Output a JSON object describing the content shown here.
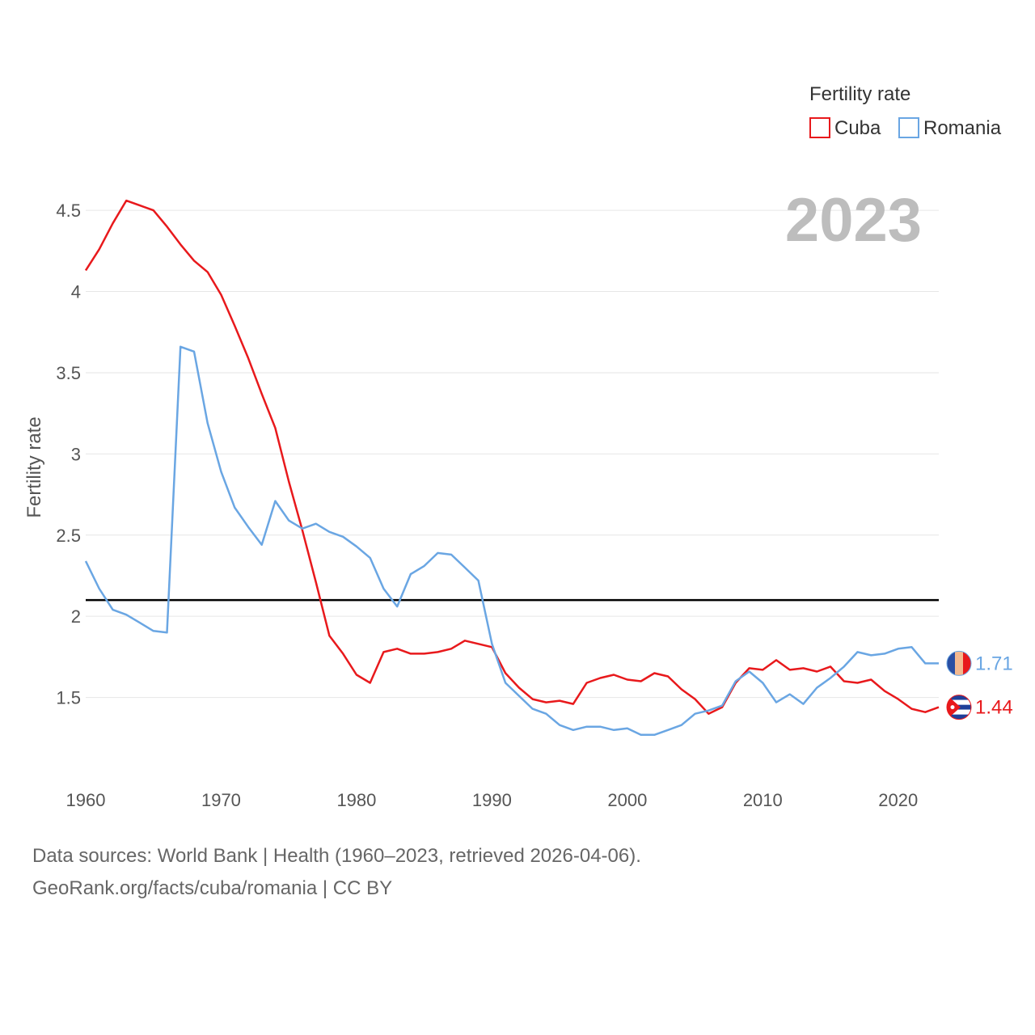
{
  "chart_data": {
    "type": "line",
    "title": "",
    "xlabel": "",
    "ylabel": "Fertility rate",
    "xlim": [
      1960,
      2023
    ],
    "ylim": [
      1.0,
      4.65
    ],
    "yticks": [
      1.5,
      2,
      2.5,
      3,
      3.5,
      4,
      4.5
    ],
    "ytick_labels": [
      "1.5",
      "2",
      "2.5",
      "3",
      "3.5",
      "4",
      "4.5"
    ],
    "xticks": [
      1960,
      1970,
      1980,
      1990,
      2000,
      2010,
      2020
    ],
    "xtick_labels": [
      "1960",
      "1970",
      "1980",
      "1990",
      "2000",
      "2010",
      "2020"
    ],
    "grid": true,
    "year_watermark": "2023",
    "reference_line": {
      "y": 2.1,
      "color": "#000000"
    },
    "legend": {
      "title": "Fertility rate",
      "position": "top-right"
    },
    "x": [
      1960,
      1961,
      1962,
      1963,
      1964,
      1965,
      1966,
      1967,
      1968,
      1969,
      1970,
      1971,
      1972,
      1973,
      1974,
      1975,
      1976,
      1977,
      1978,
      1979,
      1980,
      1981,
      1982,
      1983,
      1984,
      1985,
      1986,
      1987,
      1988,
      1989,
      1990,
      1991,
      1992,
      1993,
      1994,
      1995,
      1996,
      1997,
      1998,
      1999,
      2000,
      2001,
      2002,
      2003,
      2004,
      2005,
      2006,
      2007,
      2008,
      2009,
      2010,
      2011,
      2012,
      2013,
      2014,
      2015,
      2016,
      2017,
      2018,
      2019,
      2020,
      2021,
      2022,
      2023
    ],
    "series": [
      {
        "name": "Cuba",
        "color": "#e8191c",
        "end_label": "1.44",
        "values": [
          4.13,
          4.26,
          4.42,
          4.56,
          4.53,
          4.5,
          4.4,
          4.29,
          4.19,
          4.12,
          3.98,
          3.79,
          3.59,
          3.37,
          3.16,
          2.83,
          2.53,
          2.21,
          1.88,
          1.77,
          1.64,
          1.59,
          1.78,
          1.8,
          1.77,
          1.77,
          1.78,
          1.8,
          1.85,
          1.83,
          1.81,
          1.65,
          1.56,
          1.49,
          1.47,
          1.48,
          1.46,
          1.59,
          1.62,
          1.64,
          1.61,
          1.6,
          1.65,
          1.63,
          1.55,
          1.49,
          1.4,
          1.44,
          1.59,
          1.68,
          1.67,
          1.73,
          1.67,
          1.68,
          1.66,
          1.69,
          1.6,
          1.59,
          1.61,
          1.54,
          1.49,
          1.43,
          1.41,
          1.44
        ]
      },
      {
        "name": "Romania",
        "color": "#6aa6e3",
        "end_label": "1.71",
        "values": [
          2.34,
          2.17,
          2.04,
          2.01,
          1.96,
          1.91,
          1.9,
          3.66,
          3.63,
          3.19,
          2.89,
          2.67,
          2.55,
          2.44,
          2.71,
          2.59,
          2.54,
          2.57,
          2.52,
          2.49,
          2.43,
          2.36,
          2.17,
          2.06,
          2.26,
          2.31,
          2.39,
          2.38,
          2.3,
          2.22,
          1.83,
          1.59,
          1.51,
          1.43,
          1.4,
          1.33,
          1.3,
          1.32,
          1.32,
          1.3,
          1.31,
          1.27,
          1.27,
          1.3,
          1.33,
          1.4,
          1.42,
          1.45,
          1.6,
          1.66,
          1.59,
          1.47,
          1.52,
          1.46,
          1.56,
          1.62,
          1.69,
          1.78,
          1.76,
          1.77,
          1.8,
          1.81,
          1.71,
          1.71
        ]
      }
    ]
  },
  "source": {
    "line1": "Data sources: World Bank | Health (1960–2023, retrieved 2026-04-06).",
    "line2": "GeoRank.org/facts/cuba/romania | CC BY"
  },
  "flags": {
    "Cuba": "cuba-flag-icon",
    "Romania": "romania-flag-icon"
  }
}
